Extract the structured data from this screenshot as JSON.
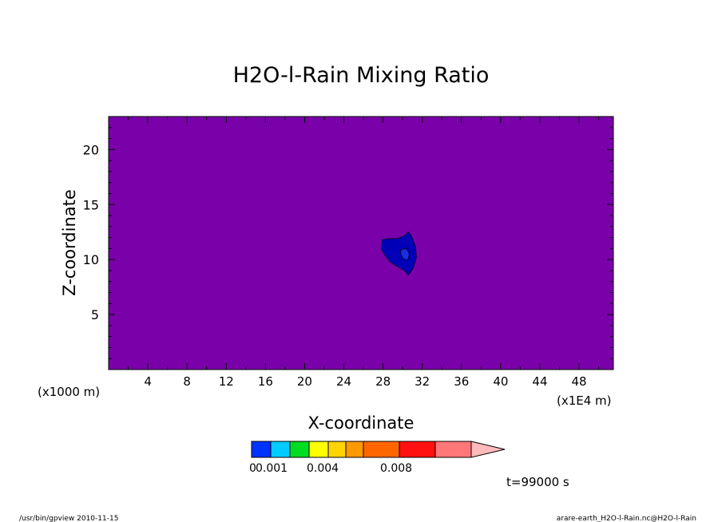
{
  "chart_data": {
    "type": "heatmap",
    "title": "H2O-l-Rain Mixing Ratio",
    "xlabel": "X-coordinate",
    "ylabel": "Z-coordinate",
    "x_unit_left": "(x1000 m)",
    "x_unit_right": "(x1E4 m)",
    "xlim": [
      0,
      51.5
    ],
    "ylim": [
      0,
      23
    ],
    "x_ticks": [
      4,
      8,
      12,
      16,
      20,
      24,
      28,
      32,
      36,
      40,
      44,
      48
    ],
    "x_tick_labels": [
      "4",
      "8",
      "12",
      "16",
      "20",
      "24",
      "28",
      "32",
      "36",
      "40",
      "44",
      "48"
    ],
    "y_ticks": [
      5,
      10,
      15,
      20
    ],
    "y_tick_labels": [
      "5",
      "10",
      "15",
      "20"
    ],
    "background_color": "#7a00aa",
    "features": [
      {
        "name": "rain-blob-outer",
        "level": 0.001,
        "color": "#0000b8",
        "outline": [
          [
            27.9,
            11.8
          ],
          [
            28.6,
            11.9
          ],
          [
            29.4,
            11.9
          ],
          [
            30.1,
            12.1
          ],
          [
            30.6,
            12.5
          ],
          [
            30.9,
            12.1
          ],
          [
            31.3,
            11.2
          ],
          [
            31.4,
            10.2
          ],
          [
            31.1,
            9.3
          ],
          [
            30.6,
            8.6
          ],
          [
            30.2,
            9.0
          ],
          [
            29.6,
            9.3
          ],
          [
            28.7,
            9.8
          ],
          [
            28.2,
            10.4
          ],
          [
            27.8,
            11.0
          ]
        ]
      },
      {
        "name": "rain-blob-inner",
        "level": 0.002,
        "color": "#1a2ee0",
        "outline": [
          [
            29.8,
            10.9
          ],
          [
            30.4,
            11.0
          ],
          [
            30.7,
            10.5
          ],
          [
            30.5,
            9.9
          ],
          [
            30.0,
            10.1
          ],
          [
            29.8,
            10.5
          ]
        ]
      }
    ],
    "colorbar": {
      "colors": [
        "#0033ff",
        "#00ccff",
        "#00dd22",
        "#ffff00",
        "#ffd400",
        "#ff9900",
        "#ff6600",
        "#ff1111",
        "#ff7777",
        "#ffbbbb"
      ],
      "tick_labels": [
        "0.001",
        "0.004",
        "0.008"
      ],
      "extra_label": "0"
    },
    "time_label": "t=99000 s"
  },
  "footer": {
    "left": "/usr/bin/gpview   2010-11-15",
    "right": "arare-earth_H2O-l-Rain.nc@H2O-l-Rain"
  }
}
